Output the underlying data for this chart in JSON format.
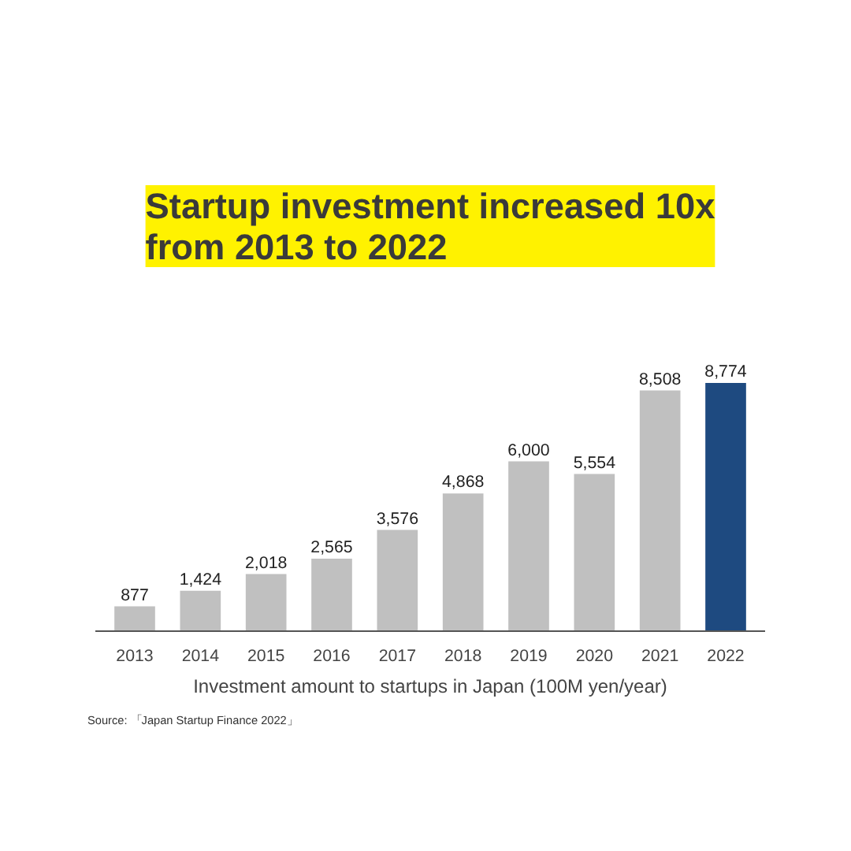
{
  "chart_data": {
    "type": "bar",
    "title": "Startup investment increased 10x from 2013 to 2022",
    "xlabel": "Investment amount to startups in Japan (100M yen/year)",
    "categories": [
      "2013",
      "2014",
      "2015",
      "2016",
      "2017",
      "2018",
      "2019",
      "2020",
      "2021",
      "2022"
    ],
    "values": [
      877,
      1424,
      2018,
      2565,
      3576,
      4868,
      6000,
      5554,
      8508,
      8774
    ],
    "value_labels": [
      "877",
      "1,424",
      "2,018",
      "2,565",
      "3,576",
      "4,868",
      "6,000",
      "5,554",
      "8,508",
      "8,774"
    ],
    "colors": [
      "#c0c0c0",
      "#c0c0c0",
      "#c0c0c0",
      "#c0c0c0",
      "#c0c0c0",
      "#c0c0c0",
      "#c0c0c0",
      "#c0c0c0",
      "#c0c0c0",
      "#1e4a80"
    ],
    "grid": false,
    "annotations": [
      "Source: 「Japan Startup Finance 2022」"
    ]
  }
}
